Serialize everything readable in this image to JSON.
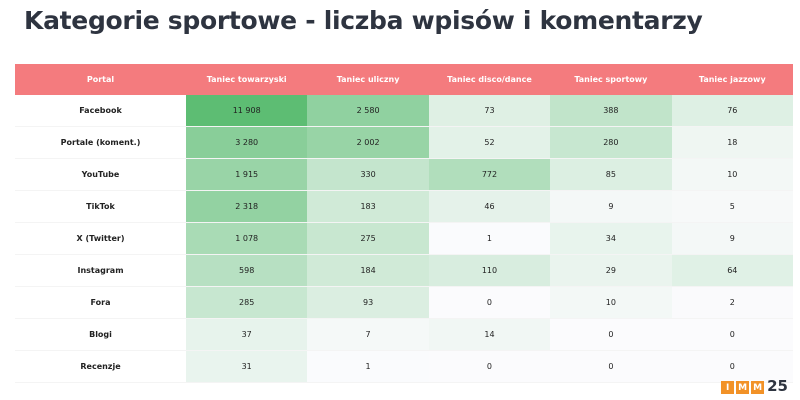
{
  "title": "Kategorie sportowe - liczba wpisów i komentarzy",
  "colors": {
    "header_bg": "#f47b7e",
    "heat_high": "#5dbd73",
    "heat_low": "#fbfbfd",
    "logo_orange": "#f29227",
    "logo_dark": "#2e3440"
  },
  "logo": {
    "letters": [
      "I",
      "M",
      "M"
    ],
    "number": "25"
  },
  "chart_data": {
    "type": "heatmap",
    "title": "Kategorie sportowe - liczba wpisów i komentarzy",
    "row_header": "Portal",
    "columns": [
      "Taniec towarzyski",
      "Taniec uliczny",
      "Taniec disco/dance",
      "Taniec sportowy",
      "Taniec jazzowy"
    ],
    "rows": [
      {
        "label": "Facebook",
        "display": [
          "11 908",
          "2 580",
          "73",
          "388",
          "76"
        ],
        "values": [
          11908,
          2580,
          73,
          388,
          76
        ]
      },
      {
        "label": "Portale (koment.)",
        "display": [
          "3 280",
          "2 002",
          "52",
          "280",
          "18"
        ],
        "values": [
          3280,
          2002,
          52,
          280,
          18
        ]
      },
      {
        "label": "YouTube",
        "display": [
          "1 915",
          "330",
          "772",
          "85",
          "10"
        ],
        "values": [
          1915,
          330,
          772,
          85,
          10
        ]
      },
      {
        "label": "TikTok",
        "display": [
          "2 318",
          "183",
          "46",
          "9",
          "5"
        ],
        "values": [
          2318,
          183,
          46,
          9,
          5
        ]
      },
      {
        "label": "X (Twitter)",
        "display": [
          "1 078",
          "275",
          "1",
          "34",
          "9"
        ],
        "values": [
          1078,
          275,
          1,
          34,
          9
        ]
      },
      {
        "label": "Instagram",
        "display": [
          "598",
          "184",
          "110",
          "29",
          "64"
        ],
        "values": [
          598,
          184,
          110,
          29,
          64
        ]
      },
      {
        "label": "Fora",
        "display": [
          "285",
          "93",
          "0",
          "10",
          "2"
        ],
        "values": [
          285,
          93,
          0,
          10,
          2
        ]
      },
      {
        "label": "Blogi",
        "display": [
          "37",
          "7",
          "14",
          "0",
          "0"
        ],
        "values": [
          37,
          7,
          14,
          0,
          0
        ]
      },
      {
        "label": "Recenzje",
        "display": [
          "31",
          "1",
          "0",
          "0",
          "0"
        ],
        "values": [
          31,
          1,
          0,
          0,
          0
        ]
      }
    ]
  }
}
